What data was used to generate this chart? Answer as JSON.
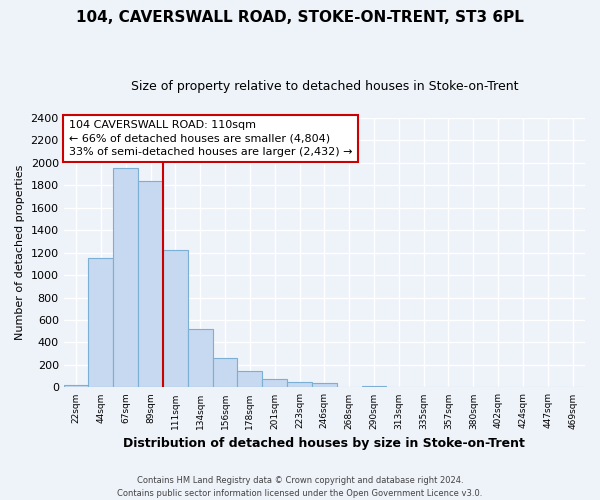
{
  "title": "104, CAVERSWALL ROAD, STOKE-ON-TRENT, ST3 6PL",
  "subtitle": "Size of property relative to detached houses in Stoke-on-Trent",
  "xlabel": "Distribution of detached houses by size in Stoke-on-Trent",
  "ylabel": "Number of detached properties",
  "bin_labels": [
    "22sqm",
    "44sqm",
    "67sqm",
    "89sqm",
    "111sqm",
    "134sqm",
    "156sqm",
    "178sqm",
    "201sqm",
    "223sqm",
    "246sqm",
    "268sqm",
    "290sqm",
    "313sqm",
    "335sqm",
    "357sqm",
    "380sqm",
    "402sqm",
    "424sqm",
    "447sqm",
    "469sqm"
  ],
  "bar_heights": [
    25,
    1150,
    1950,
    1840,
    1220,
    520,
    265,
    145,
    75,
    50,
    38,
    0,
    12,
    5,
    3,
    2,
    1,
    1,
    0,
    0,
    0
  ],
  "bar_color": "#c6d9f0",
  "bar_edge_color": "#7bafd4",
  "ref_line_x": 3.5,
  "annotation_title": "104 CAVERSWALL ROAD: 110sqm",
  "annotation_line1": "← 66% of detached houses are smaller (4,804)",
  "annotation_line2": "33% of semi-detached houses are larger (2,432) →",
  "annotation_box_color": "#ffffff",
  "annotation_box_edge_color": "#cc0000",
  "ref_line_color": "#cc0000",
  "ylim": [
    0,
    2400
  ],
  "yticks": [
    0,
    200,
    400,
    600,
    800,
    1000,
    1200,
    1400,
    1600,
    1800,
    2000,
    2200,
    2400
  ],
  "footer_line1": "Contains HM Land Registry data © Crown copyright and database right 2024.",
  "footer_line2": "Contains public sector information licensed under the Open Government Licence v3.0.",
  "background_color": "#eef2f9",
  "grid_color": "#ffffff",
  "title_fontsize": 11,
  "subtitle_fontsize": 9
}
